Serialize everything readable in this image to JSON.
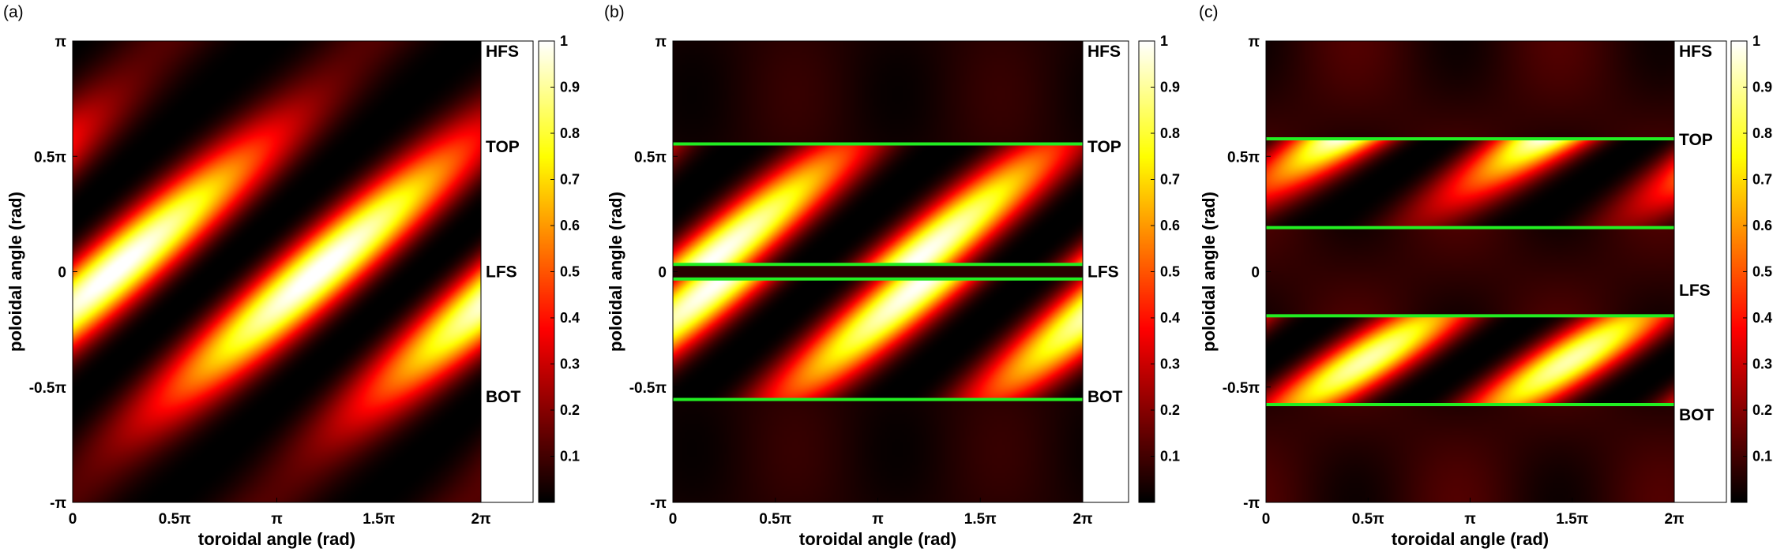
{
  "chart_data": [
    {
      "type": "heatmap",
      "panel_label": "(a)",
      "xlabel": "toroidal angle (rad)",
      "ylabel": "poloidal angle (rad)",
      "xlim": [
        0,
        6.2832
      ],
      "ylim": [
        -3.1416,
        3.1416
      ],
      "x_tick_values": [
        0,
        1.5708,
        3.1416,
        4.7124,
        6.2832
      ],
      "x_tick_labels": [
        "0",
        "0.5π",
        "π",
        "1.5π",
        "2π"
      ],
      "y_tick_values": [
        -3.1416,
        -1.5708,
        0,
        1.5708,
        3.1416
      ],
      "y_tick_labels": [
        "-π",
        "-0.5π",
        "0",
        "0.5π",
        "π"
      ],
      "region_labels": [
        {
          "text": "HFS",
          "y": 3.0
        },
        {
          "text": "TOP",
          "y": 1.7
        },
        {
          "text": "LFS",
          "y": 0
        },
        {
          "text": "BOT",
          "y": -1.7
        }
      ],
      "boundaries": [],
      "colorbar": {
        "range": [
          0,
          1
        ],
        "tick_values": [
          0.1,
          0.2,
          0.3,
          0.4,
          0.5,
          0.6,
          0.7,
          0.8,
          0.9,
          1
        ],
        "tick_labels": [
          "0.1",
          "0.2",
          "0.3",
          "0.4",
          "0.5",
          "0.6",
          "0.7",
          "0.8",
          "0.9",
          "1"
        ],
        "colormap": "hot"
      }
    },
    {
      "type": "heatmap",
      "panel_label": "(b)",
      "xlabel": "toroidal angle (rad)",
      "ylabel": "poloidal angle (rad)",
      "xlim": [
        0,
        6.2832
      ],
      "ylim": [
        -3.1416,
        3.1416
      ],
      "x_tick_values": [
        0,
        1.5708,
        3.1416,
        4.7124,
        6.2832
      ],
      "x_tick_labels": [
        "0",
        "0.5π",
        "π",
        "1.5π",
        "2π"
      ],
      "y_tick_values": [
        -3.1416,
        -1.5708,
        0,
        1.5708,
        3.1416
      ],
      "y_tick_labels": [
        "-π",
        "-0.5π",
        "0",
        "0.5π",
        "π"
      ],
      "region_labels": [
        {
          "text": "HFS",
          "y": 3.0
        },
        {
          "text": "TOP",
          "y": 1.7
        },
        {
          "text": "LFS",
          "y": 0
        },
        {
          "text": "BOT",
          "y": -1.7
        }
      ],
      "boundaries": [
        1.74,
        0.1,
        -0.1,
        -1.74
      ],
      "boundary_color": "#22ee22",
      "colorbar": {
        "range": [
          0,
          1
        ],
        "tick_values": [
          0.1,
          0.2,
          0.3,
          0.4,
          0.5,
          0.6,
          0.7,
          0.8,
          0.9,
          1
        ],
        "tick_labels": [
          "0.1",
          "0.2",
          "0.3",
          "0.4",
          "0.5",
          "0.6",
          "0.7",
          "0.8",
          "0.9",
          "1"
        ],
        "colormap": "hot"
      }
    },
    {
      "type": "heatmap",
      "panel_label": "(c)",
      "xlabel": "toroidal angle (rad)",
      "ylabel": "poloidal angle (rad)",
      "xlim": [
        0,
        6.2832
      ],
      "ylim": [
        -3.1416,
        3.1416
      ],
      "x_tick_values": [
        0,
        1.5708,
        3.1416,
        4.7124,
        6.2832
      ],
      "x_tick_labels": [
        "0",
        "0.5π",
        "π",
        "1.5π",
        "2π"
      ],
      "y_tick_values": [
        -3.1416,
        -1.5708,
        0,
        1.5708,
        3.1416
      ],
      "y_tick_labels": [
        "-π",
        "-0.5π",
        "0",
        "0.5π",
        "π"
      ],
      "region_labels": [
        {
          "text": "HFS",
          "y": 3.0
        },
        {
          "text": "TOP",
          "y": 1.8
        },
        {
          "text": "LFS",
          "y": -0.25
        },
        {
          "text": "BOT",
          "y": -1.95
        }
      ],
      "boundaries": [
        1.81,
        0.6,
        -0.6,
        -1.81
      ],
      "boundary_color": "#22ee22",
      "colorbar": {
        "range": [
          0,
          1
        ],
        "tick_values": [
          0.1,
          0.2,
          0.3,
          0.4,
          0.5,
          0.6,
          0.7,
          0.8,
          0.9,
          1
        ],
        "tick_labels": [
          "0.1",
          "0.2",
          "0.3",
          "0.4",
          "0.5",
          "0.6",
          "0.7",
          "0.8",
          "0.9",
          "1"
        ],
        "colormap": "hot"
      }
    }
  ]
}
